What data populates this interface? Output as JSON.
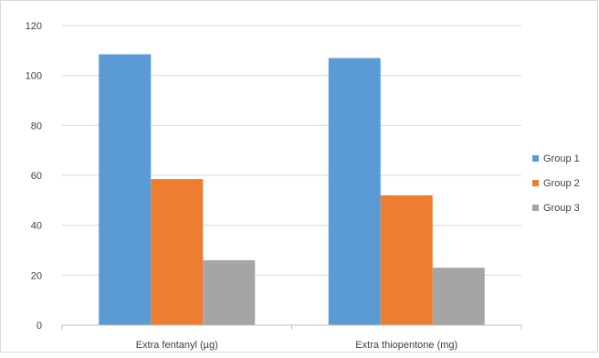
{
  "chart_data": {
    "type": "bar",
    "title": "",
    "xlabel": "",
    "ylabel": "",
    "categories": [
      "Extra fentanyl (µg)",
      "Extra thiopentone (mg)"
    ],
    "series": [
      {
        "name": "Group 1",
        "color": "#5b9bd5",
        "values": [
          108.5,
          107
        ]
      },
      {
        "name": "Group 2",
        "color": "#ed7d31",
        "values": [
          58.5,
          52
        ]
      },
      {
        "name": "Group 3",
        "color": "#a5a5a5",
        "values": [
          26,
          23
        ]
      }
    ],
    "ylim": [
      0,
      120
    ],
    "yticks": [
      "0",
      "20",
      "40",
      "60",
      "80",
      "100",
      "120"
    ],
    "grid": true,
    "legend_position": "right"
  }
}
